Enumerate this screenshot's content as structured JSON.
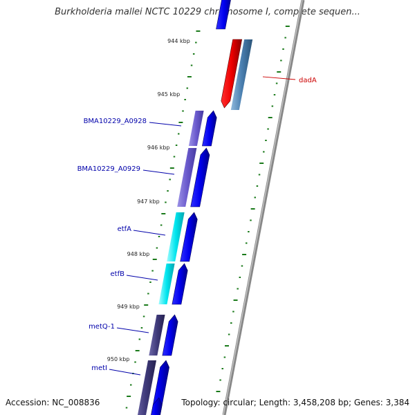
{
  "map": {
    "title": "Burkholderia mallei NCTC 10229 chromosome I, complete sequen...",
    "accession_text": "Accession: NC_008836",
    "summary_text": "Topology: circular; Length: 3,458,208 bp; Genes: 3,384"
  },
  "ticks": [
    "944 kbp",
    "945 kbp",
    "946 kbp",
    "947 kbp",
    "948 kbp",
    "949 kbp",
    "950 kbp"
  ],
  "genes": [
    {
      "label": "dadA",
      "strand": "reverse",
      "color": "#cc0000"
    },
    {
      "label": "BMA10229_A0928",
      "strand": "forward",
      "color": "#0000aa"
    },
    {
      "label": "BMA10229_A0929",
      "strand": "forward",
      "color": "#0000aa"
    },
    {
      "label": "etfA",
      "strand": "forward",
      "color": "#0000aa"
    },
    {
      "label": "etfB",
      "strand": "forward",
      "color": "#0000aa"
    },
    {
      "label": "metQ-1",
      "strand": "forward",
      "color": "#0000aa"
    },
    {
      "label": "metI",
      "strand": "forward",
      "color": "#0000aa"
    }
  ],
  "colors": {
    "cds_forward": "#0000ee",
    "cds_reverse": "#ee0000",
    "backbone": "#888888",
    "tick": "#1a7a1a",
    "gene_bar_purple": "#6a5acd",
    "gene_bar_cyan": "#00e5ee",
    "gene_bar_dark": "#3f3a7a",
    "gene_bar_steel": "#4a7fb0"
  }
}
